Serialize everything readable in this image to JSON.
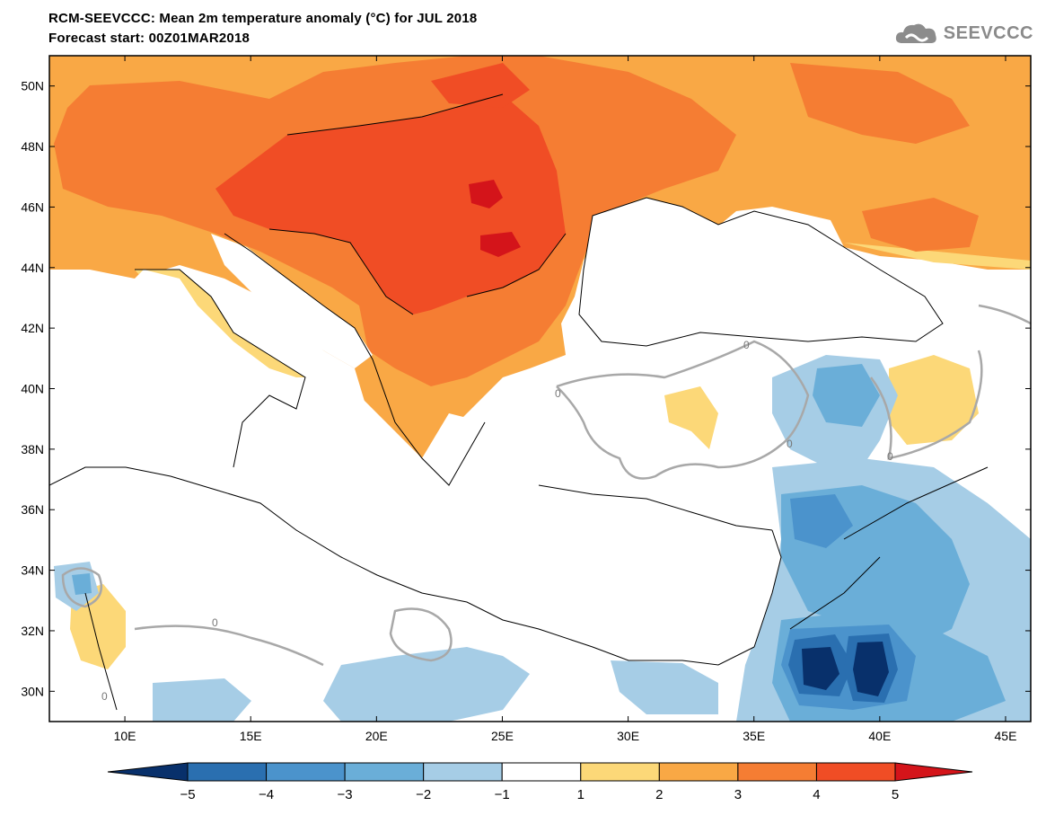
{
  "header": {
    "title": "RCM-SEEVCCC: Mean 2m temperature anomaly (°C) for JUL 2018",
    "subtitle": "Forecast start: 00Z01MAR2018",
    "logo_text": "SEEVCCC"
  },
  "map": {
    "lon_range": [
      7,
      46
    ],
    "lat_range": [
      29,
      51
    ],
    "lat_ticks": [
      {
        "value": 50,
        "label": "50N"
      },
      {
        "value": 48,
        "label": "48N"
      },
      {
        "value": 46,
        "label": "46N"
      },
      {
        "value": 44,
        "label": "44N"
      },
      {
        "value": 42,
        "label": "42N"
      },
      {
        "value": 40,
        "label": "40N"
      },
      {
        "value": 38,
        "label": "38N"
      },
      {
        "value": 36,
        "label": "36N"
      },
      {
        "value": 34,
        "label": "34N"
      },
      {
        "value": 32,
        "label": "32N"
      },
      {
        "value": 30,
        "label": "30N"
      }
    ],
    "lon_ticks": [
      {
        "value": 10,
        "label": "10E"
      },
      {
        "value": 15,
        "label": "15E"
      },
      {
        "value": 20,
        "label": "20E"
      },
      {
        "value": 25,
        "label": "25E"
      },
      {
        "value": 30,
        "label": "30E"
      },
      {
        "value": 35,
        "label": "35E"
      },
      {
        "value": 40,
        "label": "40E"
      },
      {
        "value": 45,
        "label": "45E"
      }
    ],
    "contour_label": "0"
  },
  "colorbar": {
    "colors": [
      "#08306b",
      "#2a6fb0",
      "#4b93cc",
      "#6aaed8",
      "#a6cde6",
      "#ffffff",
      "#fcd878",
      "#f9a845",
      "#f57d33",
      "#f04d25",
      "#d4141a"
    ],
    "boundaries": [
      {
        "value": -5,
        "label": "−5"
      },
      {
        "value": -4,
        "label": "−4"
      },
      {
        "value": -3,
        "label": "−3"
      },
      {
        "value": -2,
        "label": "−2"
      },
      {
        "value": -1,
        "label": "−1"
      },
      {
        "value": 1,
        "label": "1"
      },
      {
        "value": 2,
        "label": "2"
      },
      {
        "value": 3,
        "label": "3"
      },
      {
        "value": 4,
        "label": "4"
      },
      {
        "value": 5,
        "label": "5"
      }
    ]
  }
}
